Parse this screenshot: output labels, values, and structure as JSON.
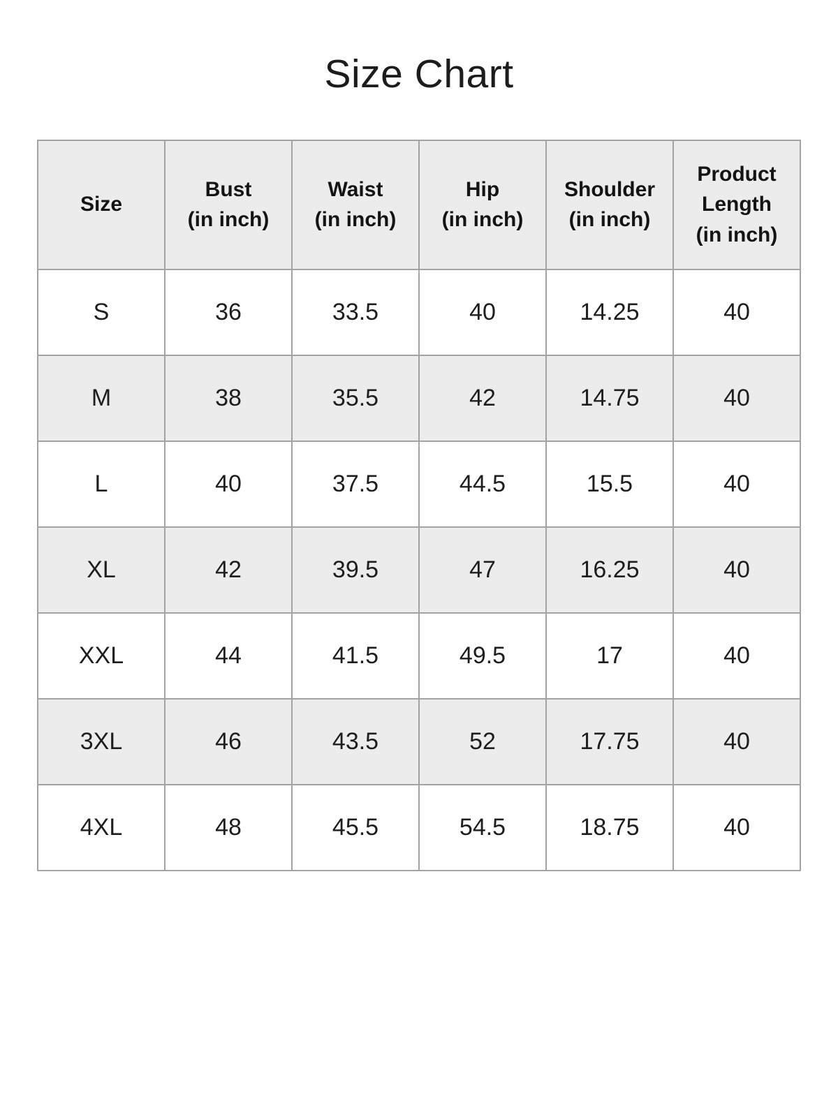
{
  "page": {
    "title": "Size Chart"
  },
  "colors": {
    "title_text": "#1c1c1c",
    "header_bg": "#ececec",
    "header_text": "#141414",
    "row_bg": "#ffffff",
    "row_alt_bg": "#ececec",
    "border": "#a3a3a3",
    "text": "#1e1e1e"
  },
  "table": {
    "columns": [
      {
        "label": "Size",
        "sub": ""
      },
      {
        "label": "Bust",
        "sub": "(in inch)"
      },
      {
        "label": "Waist",
        "sub": "(in inch)"
      },
      {
        "label": "Hip",
        "sub": "(in inch)"
      },
      {
        "label": "Shoulder",
        "sub": "(in inch)"
      },
      {
        "label": "Product Length",
        "sub": "(in inch)"
      }
    ],
    "rows": [
      {
        "cells": [
          "S",
          "36",
          "33.5",
          "40",
          "14.25",
          "40"
        ]
      },
      {
        "cells": [
          "M",
          "38",
          "35.5",
          "42",
          "14.75",
          "40"
        ]
      },
      {
        "cells": [
          "L",
          "40",
          "37.5",
          "44.5",
          "15.5",
          "40"
        ]
      },
      {
        "cells": [
          "XL",
          "42",
          "39.5",
          "47",
          "16.25",
          "40"
        ]
      },
      {
        "cells": [
          "XXL",
          "44",
          "41.5",
          "49.5",
          "17",
          "40"
        ]
      },
      {
        "cells": [
          "3XL",
          "46",
          "43.5",
          "52",
          "17.75",
          "40"
        ]
      },
      {
        "cells": [
          "4XL",
          "48",
          "45.5",
          "54.5",
          "18.75",
          "40"
        ]
      }
    ]
  },
  "chart_data": {
    "type": "table",
    "title": "Size Chart",
    "columns": [
      "Size",
      "Bust (in inch)",
      "Waist (in inch)",
      "Hip (in inch)",
      "Shoulder (in inch)",
      "Product Length (in inch)"
    ],
    "rows": [
      [
        "S",
        36,
        33.5,
        40,
        14.25,
        40
      ],
      [
        "M",
        38,
        35.5,
        42,
        14.75,
        40
      ],
      [
        "L",
        40,
        37.5,
        44.5,
        15.5,
        40
      ],
      [
        "XL",
        42,
        39.5,
        47,
        16.25,
        40
      ],
      [
        "XXL",
        44,
        41.5,
        49.5,
        17,
        40
      ],
      [
        "3XL",
        46,
        43.5,
        52,
        17.75,
        40
      ],
      [
        "4XL",
        48,
        45.5,
        54.5,
        18.75,
        40
      ]
    ]
  }
}
